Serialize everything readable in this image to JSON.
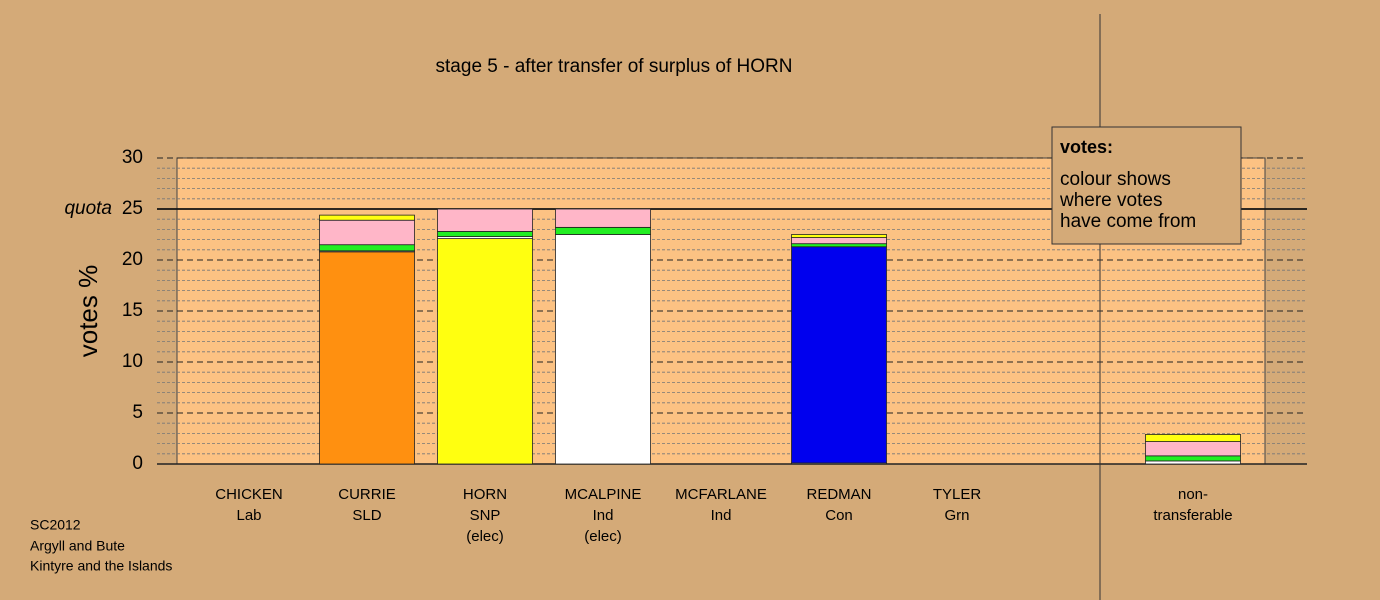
{
  "chart_data": {
    "type": "stacked_bar",
    "title": "stage 5 - after transfer of surplus of HORN",
    "y_label": "votes %",
    "categories": [
      [
        "CHICKEN",
        "Lab"
      ],
      [
        "CURRIE",
        "SLD"
      ],
      [
        "HORN",
        "SNP",
        "(elec)"
      ],
      [
        "MCALPINE",
        "Ind",
        "(elec)"
      ],
      [
        "MCFARLANE",
        "Ind"
      ],
      [
        "REDMAN",
        "Con"
      ],
      [
        "TYLER",
        "Grn"
      ],
      null,
      [
        "non-",
        "transferable"
      ]
    ],
    "series": [
      {
        "color": "#ff9010",
        "values": [
          0,
          20.8,
          0,
          0,
          0,
          0,
          0,
          null,
          0
        ]
      },
      {
        "color": "#ffff10",
        "values": [
          0,
          0,
          22.1,
          0,
          0,
          0,
          0,
          null,
          0
        ]
      },
      {
        "color": "#ffffff",
        "values": [
          0,
          0.1,
          0.2,
          22.5,
          0,
          0.1,
          0,
          null,
          0.3
        ]
      },
      {
        "color": "#0000ee",
        "values": [
          0,
          0,
          0,
          0,
          0,
          21.2,
          0,
          null,
          0
        ]
      },
      {
        "color": "#22ee22",
        "values": [
          0,
          0.6,
          0.5,
          0.7,
          0,
          0.3,
          0,
          null,
          0.5
        ]
      },
      {
        "color": "#ffb6c8",
        "values": [
          0,
          2.4,
          2.2,
          1.8,
          0,
          0.6,
          0,
          null,
          1.4
        ]
      },
      {
        "color": "#ffff10",
        "values": [
          0,
          0.5,
          0,
          0,
          0,
          0.3,
          0,
          null,
          0.7
        ]
      }
    ],
    "ylim": [
      0,
      30
    ],
    "yticks": [
      0,
      5,
      10,
      15,
      20,
      25,
      30
    ],
    "minor_yticks": [
      1,
      2,
      3,
      4,
      6,
      7,
      8,
      9,
      11,
      12,
      13,
      14,
      16,
      17,
      18,
      19,
      21,
      22,
      23,
      24,
      26,
      27,
      28,
      29
    ],
    "quota": {
      "value": 25,
      "label": "quota"
    },
    "legend": {
      "title": "votes:",
      "lines": [
        "colour shows",
        "where votes",
        "have come from"
      ]
    },
    "footer": [
      "SC2012",
      "Argyll and Bute",
      "Kintyre and the Islands"
    ]
  }
}
